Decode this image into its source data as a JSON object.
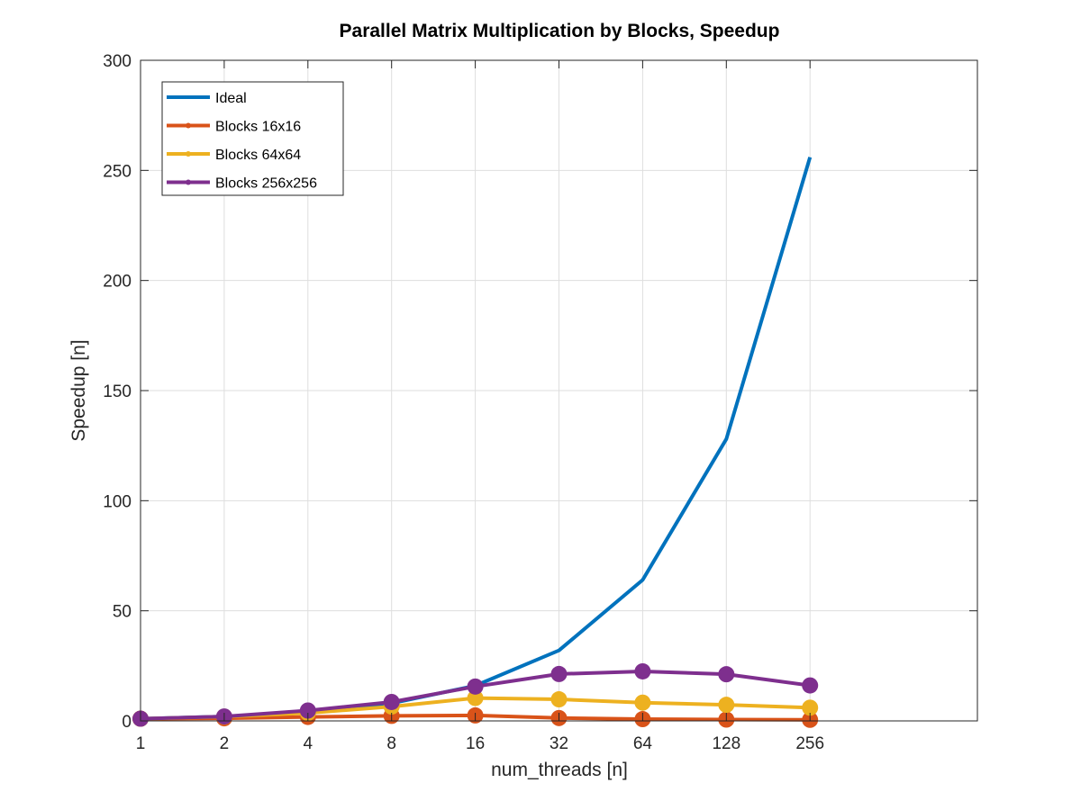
{
  "chart_data": {
    "type": "line",
    "title": "Parallel Matrix Multiplication by Blocks, Speedup",
    "xlabel": "num_threads [n]",
    "ylabel": "Speedup [n]",
    "x_scale": "log2",
    "x": [
      1,
      2,
      4,
      8,
      16,
      32,
      64,
      128,
      256
    ],
    "x_tick_labels": [
      "1",
      "2",
      "4",
      "8",
      "16",
      "32",
      "64",
      "128",
      "256"
    ],
    "xlim": [
      1,
      1024
    ],
    "ylim": [
      0,
      300
    ],
    "y_ticks": [
      0,
      50,
      100,
      150,
      200,
      250,
      300
    ],
    "y_tick_labels": [
      "0",
      "50",
      "100",
      "150",
      "200",
      "250",
      "300"
    ],
    "grid": true,
    "legend_position": "top-left",
    "series": [
      {
        "name": "Ideal",
        "color": "#0072BD",
        "marker": "none",
        "values": [
          1,
          2,
          4,
          8,
          16,
          32,
          64,
          128,
          256
        ]
      },
      {
        "name": "Blocks 16x16",
        "color": "#D95319",
        "marker": "circle",
        "values": [
          1,
          1.2,
          1.8,
          2.3,
          2.5,
          1.3,
          0.8,
          0.6,
          0.5
        ]
      },
      {
        "name": "Blocks 64x64",
        "color": "#EDB120",
        "marker": "circle",
        "values": [
          1,
          1.9,
          3.6,
          6.5,
          10.4,
          9.8,
          8.3,
          7.3,
          6.0
        ]
      },
      {
        "name": "Blocks 256x256",
        "color": "#7E2F8E",
        "marker": "circle",
        "values": [
          1,
          2.0,
          4.7,
          8.6,
          15.6,
          21.3,
          22.5,
          21.2,
          16.1
        ]
      }
    ]
  }
}
